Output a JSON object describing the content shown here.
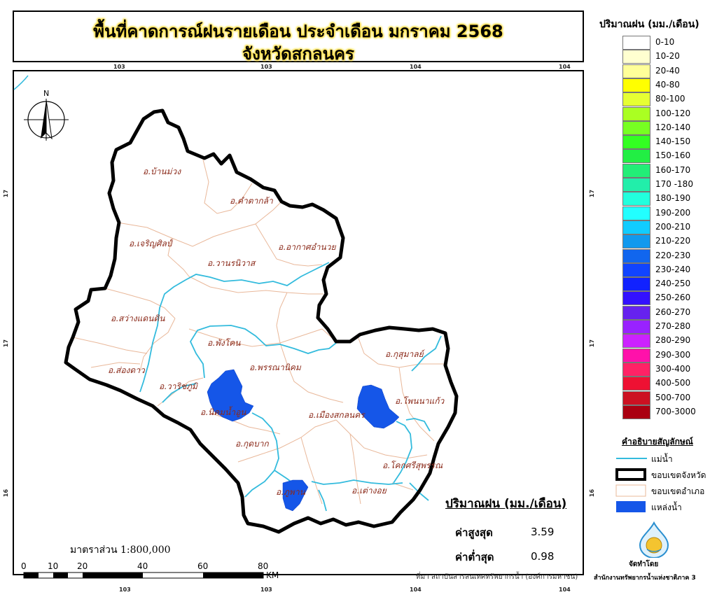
{
  "title": {
    "line1": "พื้นที่คาดการณ์ฝนรายเดือน ประจำเดือน มกราคม 2568",
    "line2": "จังหวัดสกลนคร"
  },
  "graticule": {
    "top": [
      "103",
      "103",
      "104",
      "104"
    ],
    "bottom": [
      "103",
      "103",
      "104",
      "104"
    ],
    "left": [
      "17",
      "17",
      "16"
    ],
    "right": [
      "17",
      "17",
      "16"
    ]
  },
  "north_arrow": "N",
  "legend": {
    "title": "ปริมาณฝน (มม./เดือน)",
    "classes": [
      {
        "label": "0-10",
        "color": "#ffffff"
      },
      {
        "label": "10-20",
        "color": "#ffffd0"
      },
      {
        "label": "20-40",
        "color": "#ffff99"
      },
      {
        "label": "40-80",
        "color": "#ffff00"
      },
      {
        "label": "80-100",
        "color": "#e6ff33"
      },
      {
        "label": "100-120",
        "color": "#aaff22"
      },
      {
        "label": "120-140",
        "color": "#77ff22"
      },
      {
        "label": "140-150",
        "color": "#33ff22"
      },
      {
        "label": "150-160",
        "color": "#22ee44"
      },
      {
        "label": "160-170",
        "color": "#22ee77"
      },
      {
        "label": "170 -180",
        "color": "#22eeaa"
      },
      {
        "label": "180-190",
        "color": "#22ffdd"
      },
      {
        "label": "190-200",
        "color": "#22ffff"
      },
      {
        "label": "200-210",
        "color": "#11ccff"
      },
      {
        "label": "210-220",
        "color": "#1199ee"
      },
      {
        "label": "220-230",
        "color": "#1166ee"
      },
      {
        "label": "230-240",
        "color": "#1144ff"
      },
      {
        "label": "240-250",
        "color": "#1122ff"
      },
      {
        "label": "250-260",
        "color": "#3311ff"
      },
      {
        "label": "260-270",
        "color": "#6622ee"
      },
      {
        "label": "270-280",
        "color": "#9922ff"
      },
      {
        "label": "280-290",
        "color": "#cc22ff"
      },
      {
        "label": "290-300",
        "color": "#ff11aa"
      },
      {
        "label": "300-400",
        "color": "#ff2266"
      },
      {
        "label": "400-500",
        "color": "#ee1133"
      },
      {
        "label": "500-700",
        "color": "#cc1122"
      },
      {
        "label": "700-3000",
        "color": "#aa0011"
      }
    ]
  },
  "symbols": {
    "title": "คำอธิบายสัญลักษณ์",
    "river": "แม่น้ำ",
    "province_boundary": "ขอบเขตจังหวัด",
    "district_boundary": "ขอบเขตอำเภอ",
    "water_body": "แหล่งน้ำ"
  },
  "stats": {
    "title": "ปริมาณฝน (มม./เดือน)",
    "max_label": "ค่าสูงสุด",
    "max_value": "3.59",
    "min_label": "ค่าต่ำสุด",
    "min_value": "0.98"
  },
  "scale": {
    "text": "มาตราส่วน 1:800,000",
    "ticks": [
      "0",
      "10",
      "20",
      "40",
      "60",
      "80"
    ],
    "unit": "KM"
  },
  "districts": [
    "อ.บ้านม่วง",
    "อ.คำตากล้า",
    "อ.เจริญศิลป์",
    "อ.อากาศอำนวย",
    "อ.วานรนิวาส",
    "อ.สว่างแดนดิน",
    "อ.พังโคน",
    "อ.พรรณานิคม",
    "อ.กุสุมาลย์",
    "อ.ส่องดาว",
    "อ.วาริชภูมิ",
    "อ.โพนนาแก้ว",
    "อ.นิคมน้ำอูน",
    "อ.เมืองสกลนคร",
    "อ.กุดบาก",
    "อ.โคกศรีสุพรรณ",
    "อ.ภูพาน",
    "อ.เต่างอย"
  ],
  "source": "ที่มา  สถาบันสารสนเทศทรัพยากรน้ำ (องค์การมหาชน)",
  "producer": {
    "by": "จัดทำโดย",
    "name": "สำนักงานทรัพยากรน้ำแห่งชาติภาค 3"
  }
}
